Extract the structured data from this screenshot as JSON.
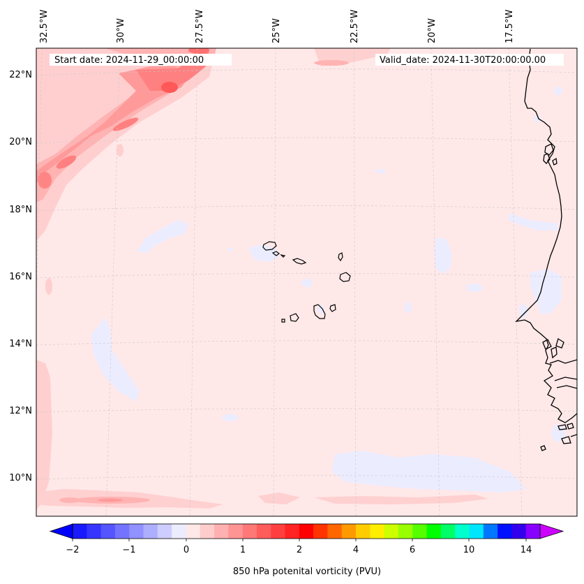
{
  "header": {
    "start_date": "Start date: 2024-11-29_00:00:00",
    "valid_date": "Valid_date: 2024-11-30T20:00:00.00"
  },
  "longitude_labels": [
    "32.5°W",
    "30°W",
    "27.5°W",
    "25°W",
    "22.5°W",
    "20°W",
    "17.5°W"
  ],
  "latitude_labels": [
    "22°N",
    "20°N",
    "18°N",
    "16°N",
    "14°N",
    "12°N",
    "10°N"
  ],
  "colorbar": {
    "label": "850 hPa potenital vorticity (PVU)",
    "tick_labels": [
      "−2",
      "−1",
      "0",
      "1",
      "2",
      "4",
      "6",
      "10",
      "14"
    ],
    "extend_low_color": "#0000ff",
    "extend_high_color": "#cc00ff",
    "colors": [
      "#1a1aff",
      "#3535ff",
      "#5555ff",
      "#7373ff",
      "#9191ff",
      "#aeaeff",
      "#cdcdff",
      "#ececff",
      "#ffe8e8",
      "#ffcccc",
      "#ffb0b0",
      "#ff9494",
      "#ff7878",
      "#ff5c5c",
      "#ff3f3f",
      "#ff2323",
      "#ff0000",
      "#ff3300",
      "#ff6600",
      "#ff9900",
      "#ffcc00",
      "#ffee00",
      "#ccff00",
      "#99ff00",
      "#55ff00",
      "#00ff00",
      "#00ff66",
      "#00ffcc",
      "#00e6ff",
      "#0077ff",
      "#0011ff",
      "#3300ee",
      "#8800ff"
    ]
  },
  "map": {
    "background_color": "#ffe8e8",
    "colors": {
      "pv_light_pink": "#ffcfcf",
      "pv_mid_pink": "#ffb3b3",
      "pv_red": "#ff8080",
      "pv_deep_red": "#ff5858",
      "pv_slightly_negative": "#ececff",
      "coastline": "#000000",
      "grid": "#c8c8c8"
    }
  }
}
